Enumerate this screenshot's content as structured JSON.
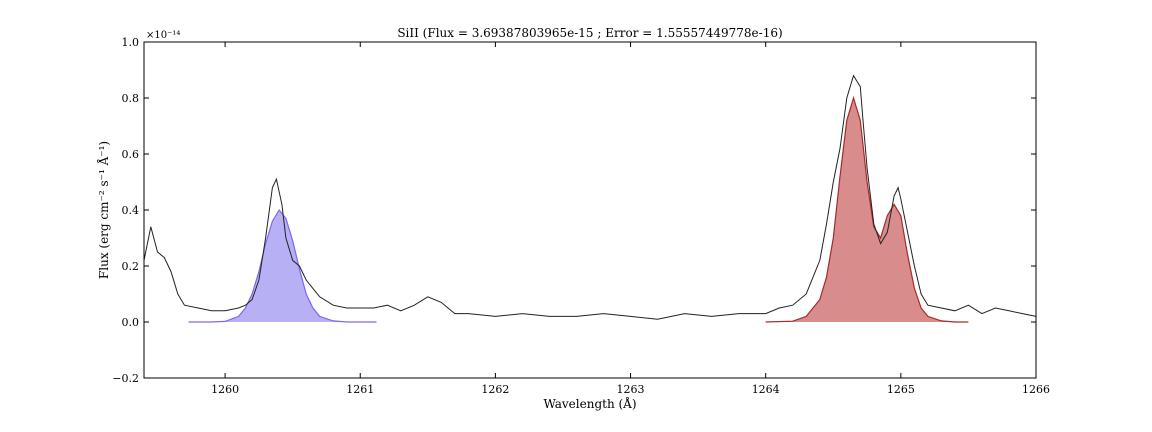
{
  "chart_data": {
    "type": "line",
    "title": "SiII (Flux = 3.69387803965e-15 ; Error = 1.55557449778e-16)",
    "xlabel": "Wavelength (Å)",
    "ylabel": "Flux (erg cm⁻² s⁻¹ Å⁻¹)",
    "y_multiplier_label": "×10⁻¹⁴",
    "xlim": [
      1259.4,
      1266.0
    ],
    "ylim": [
      -0.2,
      1.0
    ],
    "x_ticks": [
      1260,
      1261,
      1262,
      1263,
      1264,
      1265,
      1266
    ],
    "y_ticks": [
      -0.2,
      0.0,
      0.2,
      0.4,
      0.6,
      0.8,
      1.0
    ],
    "y_tick_labels": [
      "−0.2",
      "0.0",
      "0.2",
      "0.4",
      "0.6",
      "0.8",
      "1.0"
    ],
    "grid": false,
    "series": [
      {
        "kind": "spectrum",
        "color": "#222222",
        "x": [
          1259.4,
          1259.45,
          1259.5,
          1259.55,
          1259.6,
          1259.65,
          1259.7,
          1259.8,
          1259.9,
          1260.0,
          1260.1,
          1260.15,
          1260.2,
          1260.25,
          1260.3,
          1260.35,
          1260.38,
          1260.42,
          1260.45,
          1260.5,
          1260.55,
          1260.6,
          1260.65,
          1260.7,
          1260.8,
          1260.9,
          1261.0,
          1261.1,
          1261.2,
          1261.3,
          1261.4,
          1261.5,
          1261.6,
          1261.7,
          1261.8,
          1262.0,
          1262.2,
          1262.4,
          1262.6,
          1262.8,
          1263.0,
          1263.2,
          1263.4,
          1263.6,
          1263.8,
          1264.0,
          1264.1,
          1264.2,
          1264.3,
          1264.4,
          1264.45,
          1264.5,
          1264.55,
          1264.6,
          1264.65,
          1264.7,
          1264.72,
          1264.75,
          1264.8,
          1264.85,
          1264.9,
          1264.95,
          1264.98,
          1265.0,
          1265.05,
          1265.1,
          1265.15,
          1265.2,
          1265.3,
          1265.4,
          1265.5,
          1265.6,
          1265.7,
          1265.8,
          1265.9,
          1266.0
        ],
        "y": [
          0.22,
          0.34,
          0.25,
          0.23,
          0.18,
          0.1,
          0.06,
          0.05,
          0.04,
          0.04,
          0.05,
          0.06,
          0.08,
          0.15,
          0.3,
          0.48,
          0.51,
          0.42,
          0.3,
          0.22,
          0.2,
          0.15,
          0.12,
          0.09,
          0.06,
          0.05,
          0.05,
          0.05,
          0.06,
          0.04,
          0.06,
          0.09,
          0.07,
          0.03,
          0.03,
          0.02,
          0.03,
          0.02,
          0.02,
          0.03,
          0.02,
          0.01,
          0.03,
          0.02,
          0.03,
          0.03,
          0.05,
          0.06,
          0.1,
          0.22,
          0.35,
          0.5,
          0.62,
          0.8,
          0.88,
          0.84,
          0.72,
          0.55,
          0.35,
          0.28,
          0.32,
          0.45,
          0.48,
          0.44,
          0.32,
          0.2,
          0.1,
          0.06,
          0.05,
          0.04,
          0.06,
          0.03,
          0.05,
          0.04,
          0.03,
          0.02
        ]
      },
      {
        "kind": "fit",
        "color": "#7b68ee",
        "fill": "#b8b0f5",
        "x": [
          1259.73,
          1259.9,
          1260.0,
          1260.1,
          1260.15,
          1260.2,
          1260.25,
          1260.3,
          1260.35,
          1260.4,
          1260.45,
          1260.5,
          1260.55,
          1260.6,
          1260.65,
          1260.7,
          1260.8,
          1260.9,
          1261.0,
          1261.12
        ],
        "y": [
          0.0,
          0.0,
          0.002,
          0.02,
          0.05,
          0.1,
          0.18,
          0.28,
          0.36,
          0.4,
          0.37,
          0.29,
          0.19,
          0.1,
          0.05,
          0.02,
          0.004,
          0.0,
          0.0,
          0.0
        ]
      },
      {
        "kind": "fit",
        "color": "#a52a2a",
        "fill": "#d98c8c",
        "x": [
          1264.0,
          1264.2,
          1264.3,
          1264.4,
          1264.45,
          1264.5,
          1264.55,
          1264.6,
          1264.65,
          1264.7,
          1264.75,
          1264.8,
          1264.85,
          1264.9,
          1264.95,
          1265.0,
          1265.05,
          1265.1,
          1265.15,
          1265.2,
          1265.3,
          1265.4,
          1265.5
        ],
        "y": [
          0.0,
          0.003,
          0.02,
          0.08,
          0.16,
          0.3,
          0.52,
          0.72,
          0.8,
          0.72,
          0.5,
          0.34,
          0.3,
          0.38,
          0.42,
          0.38,
          0.24,
          0.12,
          0.05,
          0.02,
          0.004,
          0.0,
          0.0
        ]
      }
    ]
  }
}
